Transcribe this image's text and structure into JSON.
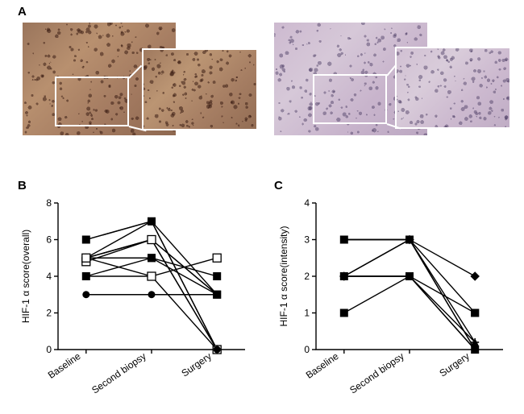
{
  "labels": {
    "A": "A",
    "B": "B",
    "C": "C"
  },
  "panelA": {
    "left_main_bg": "linear-gradient(135deg,#9a755c,#b8906f,#a37a60,#8e6850)",
    "left_zoom_bg": "linear-gradient(135deg,#a07a5f,#bb9573,#a67e63,#936d54)",
    "right_main_bg": "linear-gradient(135deg,#cdbad0,#d6c8d8,#c8b4cc,#bca8c2)",
    "right_zoom_bg": "linear-gradient(135deg,#d1c0d3,#d9ccda,#ccb9cf,#c0adc5)"
  },
  "panelB": {
    "y_title": "HIF-1 α score(overall)",
    "x_categories": [
      "Baseline",
      "Second biopsy",
      "Surgery"
    ],
    "y_max": 8,
    "y_step": 2,
    "series": [
      {
        "vals": [
          6.0,
          7.0,
          0.0
        ],
        "marker": "circle"
      },
      {
        "vals": [
          6.0,
          7.0,
          3.0
        ],
        "marker": "square"
      },
      {
        "vals": [
          5.0,
          7.0,
          0.0
        ],
        "marker": "triangle"
      },
      {
        "vals": [
          5.0,
          6.0,
          3.0
        ],
        "marker": "triangle-down"
      },
      {
        "vals": [
          5.0,
          6.0,
          0.0
        ],
        "marker": "diamond"
      },
      {
        "vals": [
          5.0,
          6.0,
          3.0
        ],
        "marker": "circle"
      },
      {
        "vals": [
          5.0,
          5.0,
          4.0
        ],
        "marker": "square"
      },
      {
        "vals": [
          4.8,
          6.0,
          0.0
        ],
        "marker": "square-open"
      },
      {
        "vals": [
          4.0,
          5.0,
          3.0
        ],
        "marker": "square"
      },
      {
        "vals": [
          4.0,
          4.0,
          0.0
        ],
        "marker": "circle"
      },
      {
        "vals": [
          3.0,
          3.0,
          3.0
        ],
        "marker": "circle"
      },
      {
        "vals": [
          5.0,
          4.0,
          5.0
        ],
        "marker": "square-open"
      }
    ]
  },
  "panelC": {
    "y_title": "HIF-1 α score(intensity)",
    "x_categories": [
      "Baseline",
      "Second biopsy",
      "Surgery"
    ],
    "y_max": 4,
    "y_step": 1,
    "series": [
      {
        "vals": [
          3.0,
          3.0,
          0.0
        ],
        "marker": "circle"
      },
      {
        "vals": [
          3.0,
          3.0,
          1.0
        ],
        "marker": "square"
      },
      {
        "vals": [
          3.0,
          3.0,
          0.2
        ],
        "marker": "triangle"
      },
      {
        "vals": [
          2.0,
          3.0,
          2.0
        ],
        "marker": "diamond"
      },
      {
        "vals": [
          2.0,
          3.0,
          0.0
        ],
        "marker": "triangle-down"
      },
      {
        "vals": [
          2.0,
          2.0,
          0.0
        ],
        "marker": "circle"
      },
      {
        "vals": [
          2.0,
          2.0,
          1.0
        ],
        "marker": "square"
      },
      {
        "vals": [
          2.0,
          2.0,
          0.2
        ],
        "marker": "plus"
      },
      {
        "vals": [
          1.0,
          2.0,
          0.0
        ],
        "marker": "square"
      }
    ]
  },
  "style": {
    "marker_size": 5,
    "line_color": "#000000",
    "axis_color": "#000000",
    "font_size": 12
  }
}
